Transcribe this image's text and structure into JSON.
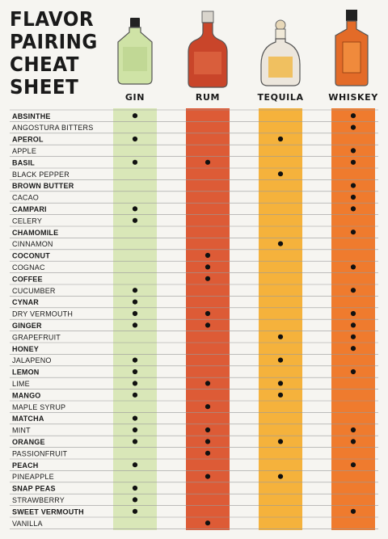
{
  "title_lines": [
    "FLAVOR",
    "PAIRING",
    "CHEAT",
    "SHEET"
  ],
  "chart_data": {
    "type": "table",
    "columns": [
      "GIN",
      "RUM",
      "TEQUILA",
      "WHISKEY"
    ],
    "column_colors": [
      "#d9e7b8",
      "#dd5b36",
      "#f5b23c",
      "#ef7b2e"
    ],
    "rows": [
      {
        "label": "ABSINTHE",
        "bold": true,
        "pairs": [
          1,
          0,
          0,
          1
        ]
      },
      {
        "label": "ANGOSTURA BITTERS",
        "bold": false,
        "pairs": [
          0,
          0,
          0,
          1
        ]
      },
      {
        "label": "APEROL",
        "bold": true,
        "pairs": [
          1,
          0,
          1,
          0
        ]
      },
      {
        "label": "APPLE",
        "bold": false,
        "pairs": [
          0,
          0,
          0,
          1
        ]
      },
      {
        "label": "BASIL",
        "bold": true,
        "pairs": [
          1,
          1,
          0,
          1
        ]
      },
      {
        "label": "BLACK PEPPER",
        "bold": false,
        "pairs": [
          0,
          0,
          1,
          0
        ]
      },
      {
        "label": "BROWN BUTTER",
        "bold": true,
        "pairs": [
          0,
          0,
          0,
          1
        ]
      },
      {
        "label": "CACAO",
        "bold": false,
        "pairs": [
          0,
          0,
          0,
          1
        ]
      },
      {
        "label": "CAMPARI",
        "bold": true,
        "pairs": [
          1,
          0,
          0,
          1
        ]
      },
      {
        "label": "CELERY",
        "bold": false,
        "pairs": [
          1,
          0,
          0,
          0
        ]
      },
      {
        "label": "CHAMOMILE",
        "bold": true,
        "pairs": [
          0,
          0,
          0,
          1
        ]
      },
      {
        "label": "CINNAMON",
        "bold": false,
        "pairs": [
          0,
          0,
          1,
          0
        ]
      },
      {
        "label": "COCONUT",
        "bold": true,
        "pairs": [
          0,
          1,
          0,
          0
        ]
      },
      {
        "label": "COGNAC",
        "bold": false,
        "pairs": [
          0,
          1,
          0,
          1
        ]
      },
      {
        "label": "COFFEE",
        "bold": true,
        "pairs": [
          0,
          1,
          0,
          0
        ]
      },
      {
        "label": "CUCUMBER",
        "bold": false,
        "pairs": [
          1,
          0,
          0,
          1
        ]
      },
      {
        "label": "CYNAR",
        "bold": true,
        "pairs": [
          1,
          0,
          0,
          0
        ]
      },
      {
        "label": "DRY VERMOUTH",
        "bold": false,
        "pairs": [
          1,
          1,
          0,
          1
        ]
      },
      {
        "label": "GINGER",
        "bold": true,
        "pairs": [
          1,
          1,
          0,
          1
        ]
      },
      {
        "label": "GRAPEFRUIT",
        "bold": false,
        "pairs": [
          0,
          0,
          1,
          1
        ]
      },
      {
        "label": "HONEY",
        "bold": true,
        "pairs": [
          0,
          0,
          0,
          1
        ]
      },
      {
        "label": "JALAPENO",
        "bold": false,
        "pairs": [
          1,
          0,
          1,
          0
        ]
      },
      {
        "label": "LEMON",
        "bold": true,
        "pairs": [
          1,
          0,
          0,
          1
        ]
      },
      {
        "label": "LIME",
        "bold": false,
        "pairs": [
          1,
          1,
          1,
          0
        ]
      },
      {
        "label": "MANGO",
        "bold": true,
        "pairs": [
          1,
          0,
          1,
          0
        ]
      },
      {
        "label": "MAPLE SYRUP",
        "bold": false,
        "pairs": [
          0,
          1,
          0,
          0
        ]
      },
      {
        "label": "MATCHA",
        "bold": true,
        "pairs": [
          1,
          0,
          0,
          0
        ]
      },
      {
        "label": "MINT",
        "bold": false,
        "pairs": [
          1,
          1,
          0,
          1
        ]
      },
      {
        "label": "ORANGE",
        "bold": true,
        "pairs": [
          1,
          1,
          1,
          1
        ]
      },
      {
        "label": "PASSIONFRUIT",
        "bold": false,
        "pairs": [
          0,
          1,
          0,
          0
        ]
      },
      {
        "label": "PEACH",
        "bold": true,
        "pairs": [
          1,
          0,
          0,
          1
        ]
      },
      {
        "label": "PINEAPPLE",
        "bold": false,
        "pairs": [
          0,
          1,
          1,
          0
        ]
      },
      {
        "label": "SNAP PEAS",
        "bold": true,
        "pairs": [
          1,
          0,
          0,
          0
        ]
      },
      {
        "label": "STRAWBERRY",
        "bold": false,
        "pairs": [
          1,
          0,
          0,
          0
        ]
      },
      {
        "label": "SWEET VERMOUTH",
        "bold": true,
        "pairs": [
          1,
          0,
          0,
          1
        ]
      },
      {
        "label": "VANILLA",
        "bold": false,
        "pairs": [
          0,
          1,
          0,
          0
        ]
      }
    ]
  }
}
